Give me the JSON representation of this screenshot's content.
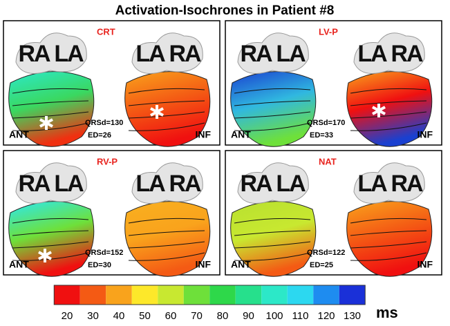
{
  "title": "Activation-Isochrones in Patient #8",
  "panels": [
    {
      "mode": "CRT",
      "left": {
        "atria": [
          "RA",
          "LA"
        ],
        "view": "ANT"
      },
      "right": {
        "atria": [
          "LA",
          "RA"
        ],
        "view": "INF"
      },
      "qrsd": "QRSd=130",
      "ed": "ED=26"
    },
    {
      "mode": "LV-P",
      "left": {
        "atria": [
          "RA",
          "LA"
        ],
        "view": "ANT"
      },
      "right": {
        "atria": [
          "LA",
          "RA"
        ],
        "view": "INF"
      },
      "qrsd": "QRSd=170",
      "ed": "ED=33"
    },
    {
      "mode": "RV-P",
      "left": {
        "atria": [
          "RA",
          "LA"
        ],
        "view": "ANT"
      },
      "right": {
        "atria": [
          "LA",
          "RA"
        ],
        "view": "INF"
      },
      "qrsd": "QRSd=152",
      "ed": "ED=30"
    },
    {
      "mode": "NAT",
      "left": {
        "atria": [
          "RA",
          "LA"
        ],
        "view": "ANT"
      },
      "right": {
        "atria": [
          "LA",
          "RA"
        ],
        "view": "INF"
      },
      "qrsd": "QRSd=122",
      "ed": "ED=25"
    }
  ],
  "colorbar": {
    "ticks": [
      20,
      30,
      40,
      50,
      60,
      70,
      80,
      90,
      100,
      110,
      120,
      130
    ],
    "colors": [
      "#f01010",
      "#f45a14",
      "#f9a31c",
      "#fde82a",
      "#c8e830",
      "#6ee03a",
      "#2ed84a",
      "#26e08c",
      "#2ce8c8",
      "#2cd8f0",
      "#1e8cf0",
      "#1a30d8"
    ],
    "unit": "ms"
  }
}
